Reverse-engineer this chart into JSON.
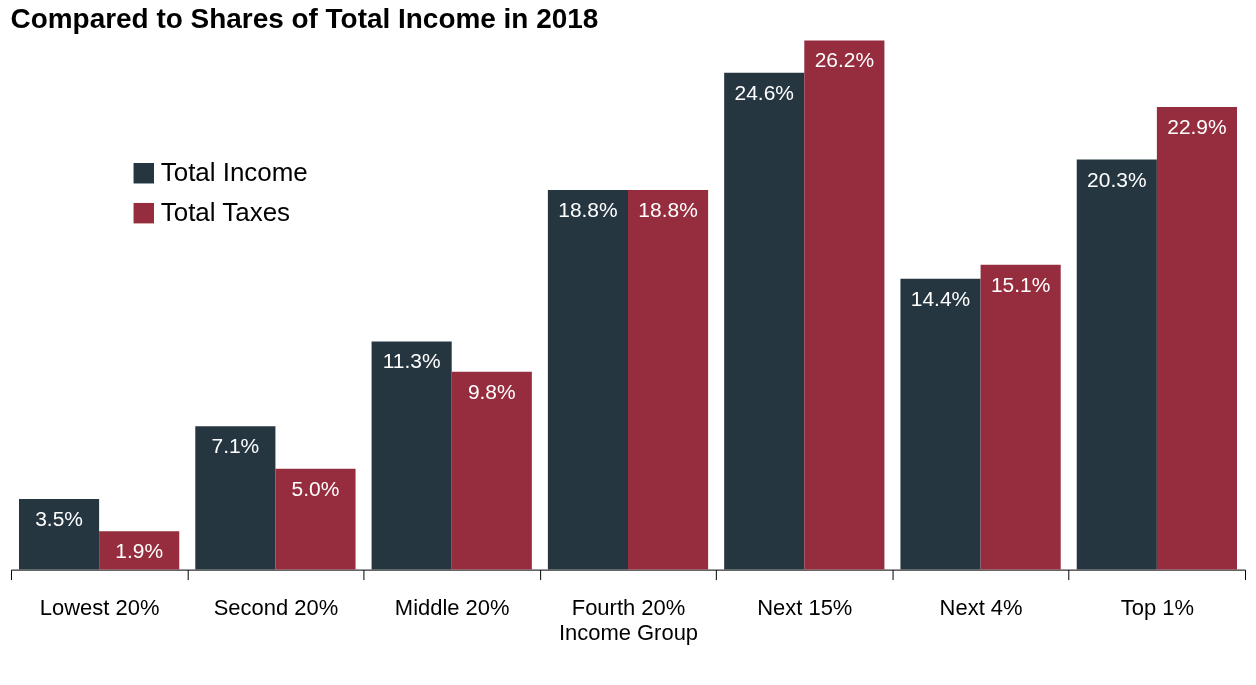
{
  "chart_data": {
    "type": "bar",
    "title": "Compared to Shares of Total Income in 2018",
    "xlabel": "Income Group",
    "categories": [
      "Lowest 20%",
      "Second 20%",
      "Middle 20%",
      "Fourth 20%",
      "Next 15%",
      "Next 4%",
      "Top 1%"
    ],
    "series": [
      {
        "name": "Total Income",
        "color": "#253641",
        "values": [
          3.5,
          7.1,
          11.3,
          18.8,
          24.6,
          14.4,
          20.3
        ],
        "value_labels": [
          "3.5%",
          "7.1%",
          "11.3%",
          "18.8%",
          "24.6%",
          "14.4%",
          "20.3%"
        ]
      },
      {
        "name": "Total Taxes",
        "color": "#962d3e",
        "values": [
          1.9,
          5.0,
          9.8,
          18.8,
          26.2,
          15.1,
          22.9
        ],
        "value_labels": [
          "1.9%",
          "5.0%",
          "9.8%",
          "18.8%",
          "26.2%",
          "15.1%",
          "22.9%"
        ]
      }
    ],
    "legend": "top left"
  }
}
